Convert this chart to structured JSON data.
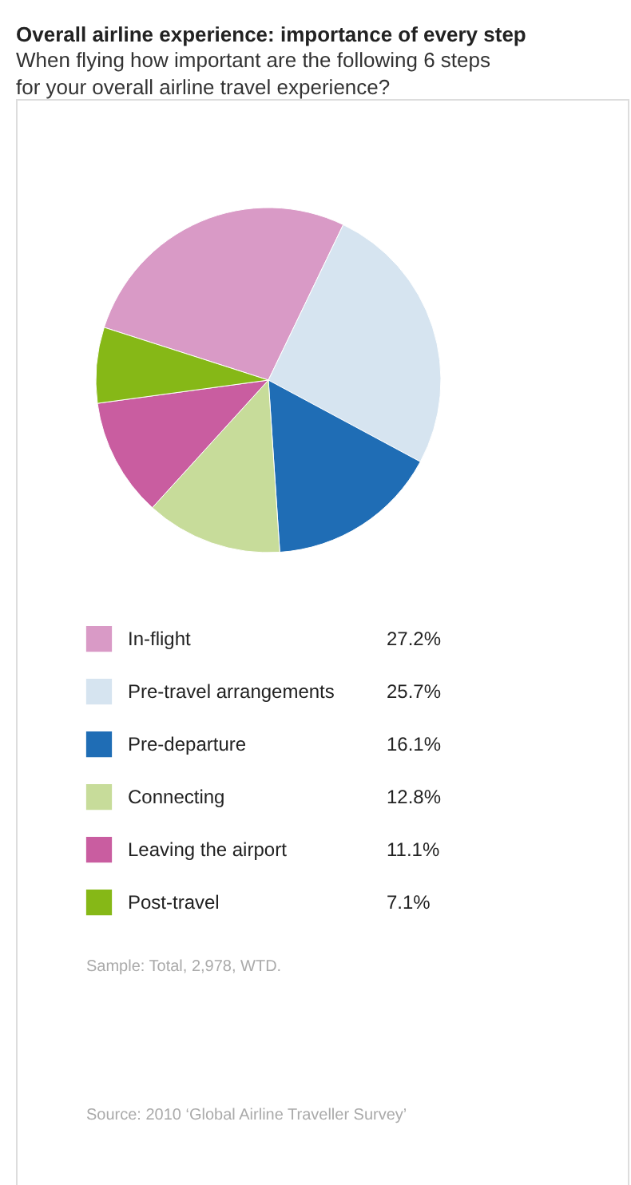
{
  "chart_data": {
    "type": "pie",
    "title": "Overall airline experience: importance of every step",
    "subtitle": "When flying how important are the following 6 steps for your overall airline travel experience?",
    "categories": [
      "In-flight",
      "Pre-travel arrangements",
      "Pre-departure",
      "Connecting",
      "Leaving the airport",
      "Post-travel"
    ],
    "values": [
      27.2,
      25.7,
      16.1,
      12.8,
      11.1,
      7.1
    ],
    "colors": [
      "#d99ac6",
      "#d6e4f0",
      "#1f6db5",
      "#c7dc9a",
      "#c95da0",
      "#86b817"
    ],
    "value_labels": [
      "27.2%",
      "25.7%",
      "16.1%",
      "12.8%",
      "11.1%",
      "7.1%"
    ],
    "legend": "bottom",
    "annotations": [
      "Sample: Total, 2,978, WTD.",
      "Source: 2010 ‘Global Airline Traveller Survey’"
    ]
  }
}
